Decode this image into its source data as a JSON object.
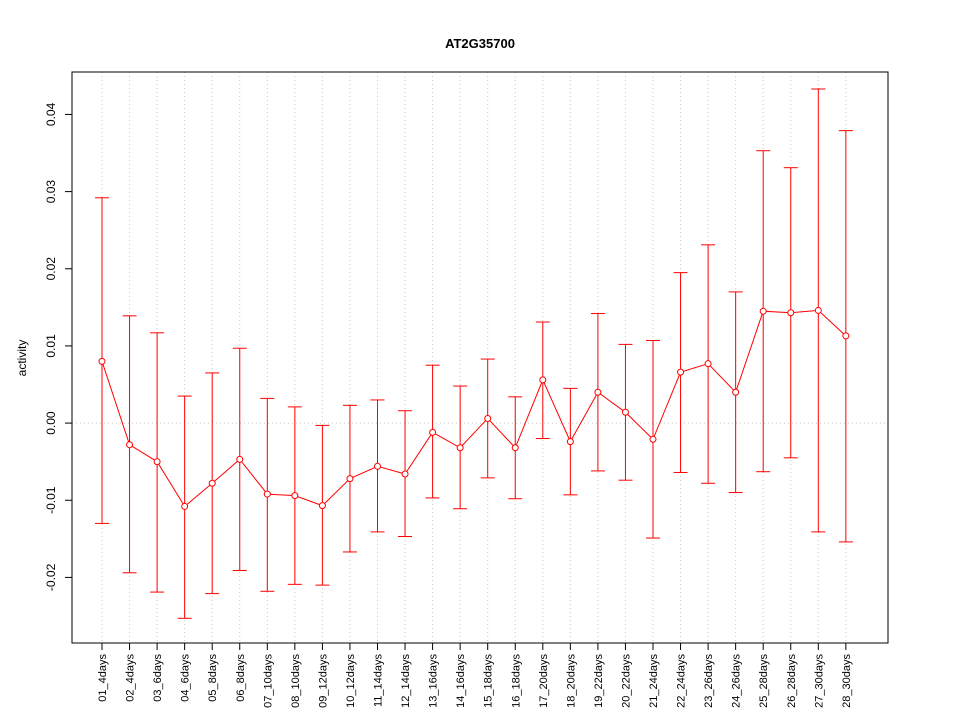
{
  "chart_data": {
    "type": "line",
    "title": "AT2G35700",
    "xlabel": "",
    "ylabel": "activity",
    "ylim": [
      -0.0285,
      0.0455
    ],
    "yticks": [
      -0.02,
      -0.01,
      0.0,
      0.01,
      0.02,
      0.03,
      0.04
    ],
    "ytick_labels": [
      "-0.02",
      "-0.01",
      "0.00",
      "0.01",
      "0.02",
      "0.03",
      "0.04"
    ],
    "grid": "vertical dotted at each category, horizontal dotted at 0",
    "series_color": "#ff0000",
    "grid_color": "#c8c8c8",
    "categories": [
      "01_4days",
      "02_4days",
      "03_6days",
      "04_6days",
      "05_8days",
      "06_8days",
      "07_10days",
      "08_10days",
      "09_12days",
      "10_12days",
      "11_14days",
      "12_14days",
      "13_16days",
      "14_16days",
      "15_18days",
      "16_18days",
      "17_20days",
      "18_20days",
      "19_22days",
      "20_22days",
      "21_24days",
      "22_24days",
      "23_26days",
      "24_26days",
      "25_28days",
      "26_28days",
      "27_30days",
      "28_30days"
    ],
    "values": [
      0.008,
      -0.0028,
      -0.005,
      -0.0108,
      -0.0078,
      -0.0047,
      -0.0092,
      -0.0094,
      -0.0107,
      -0.0072,
      -0.0056,
      -0.0066,
      -0.0012,
      -0.0032,
      0.0006,
      -0.0032,
      0.0056,
      -0.0024,
      0.004,
      0.0014,
      -0.0021,
      0.0066,
      0.0077,
      0.004,
      0.0145,
      0.0143,
      0.0146,
      0.0113
    ],
    "upper": [
      0.0292,
      0.0139,
      0.0117,
      0.0035,
      0.0065,
      0.0097,
      0.0032,
      0.0021,
      -0.0003,
      0.0023,
      0.003,
      0.0016,
      0.0075,
      0.0048,
      0.0083,
      0.0034,
      0.0131,
      0.0045,
      0.0142,
      0.0102,
      0.0107,
      0.0195,
      0.0231,
      0.017,
      0.0353,
      0.0331,
      0.0433,
      0.0379
    ],
    "lower": [
      -0.013,
      -0.0194,
      -0.0219,
      -0.0253,
      -0.0221,
      -0.0191,
      -0.0218,
      -0.0209,
      -0.021,
      -0.0167,
      -0.0141,
      -0.0147,
      -0.0097,
      -0.0111,
      -0.0071,
      -0.0098,
      -0.002,
      -0.0093,
      -0.0062,
      -0.0074,
      -0.0149,
      -0.0064,
      -0.0078,
      -0.009,
      -0.0063,
      -0.0045,
      -0.0141,
      -0.0154
    ]
  }
}
